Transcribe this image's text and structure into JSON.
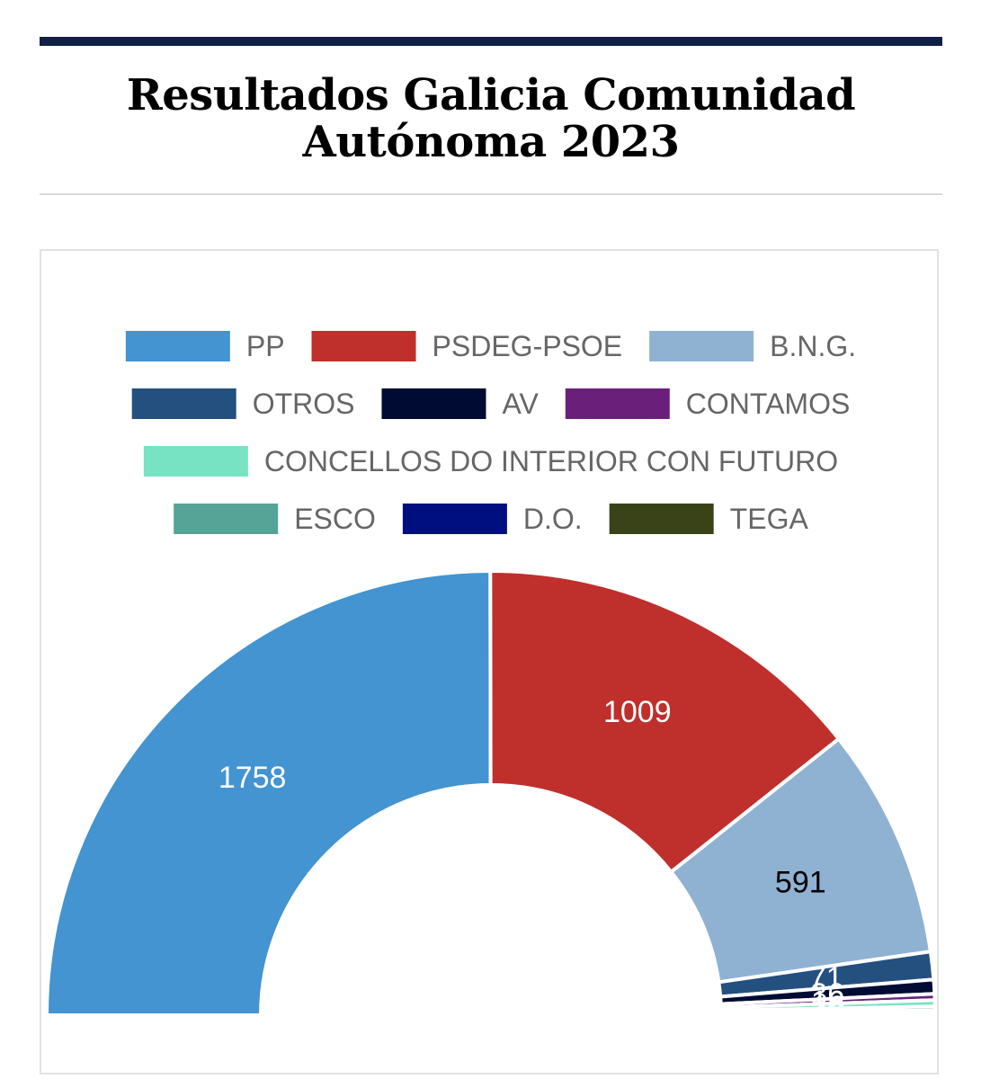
{
  "page": {
    "title_line1": "Resultados Galicia Comunidad",
    "title_line2": "Autónoma 2023"
  },
  "chart_data": {
    "type": "pie",
    "variant": "half-donut",
    "title": "Resultados Galicia Comunidad Autónoma 2023",
    "legend_placement": "top",
    "series": [
      {
        "name": "PP",
        "value": 1758,
        "color": "#4394d0",
        "label_color": "#ffffff"
      },
      {
        "name": "PSDEG-PSOE",
        "value": 1009,
        "color": "#bf2f2b",
        "label_color": "#ffffff"
      },
      {
        "name": "B.N.G.",
        "value": 591,
        "color": "#8fb2d2",
        "label_color": "#000000"
      },
      {
        "name": "OTROS",
        "value": 71,
        "color": "#245080",
        "label_color": "#ffffff"
      },
      {
        "name": "AV",
        "value": 36,
        "color": "#000b33",
        "label_color": "#ffffff"
      },
      {
        "name": "CONTAMOS",
        "value": 16,
        "color": "#6a207a",
        "label_color": "#ffffff"
      },
      {
        "name": "CONCELLOS DO INTERIOR CON FUTURO",
        "value": 16,
        "color": "#78e3c2",
        "label_color": "#ffffff"
      },
      {
        "name": "ESCO",
        "value": 10,
        "color": "#56a397",
        "label_color": "#ffffff"
      },
      {
        "name": "D.O.",
        "value": 8,
        "color": "#000f80",
        "label_color": "#ffffff"
      },
      {
        "name": "TEGA",
        "value": 4,
        "color": "#3a4218",
        "label_color": "#ffffff"
      }
    ],
    "legend_rows": [
      [
        0,
        1,
        2
      ],
      [
        3,
        4,
        5
      ],
      [
        6
      ],
      [
        7,
        8,
        9
      ]
    ]
  }
}
